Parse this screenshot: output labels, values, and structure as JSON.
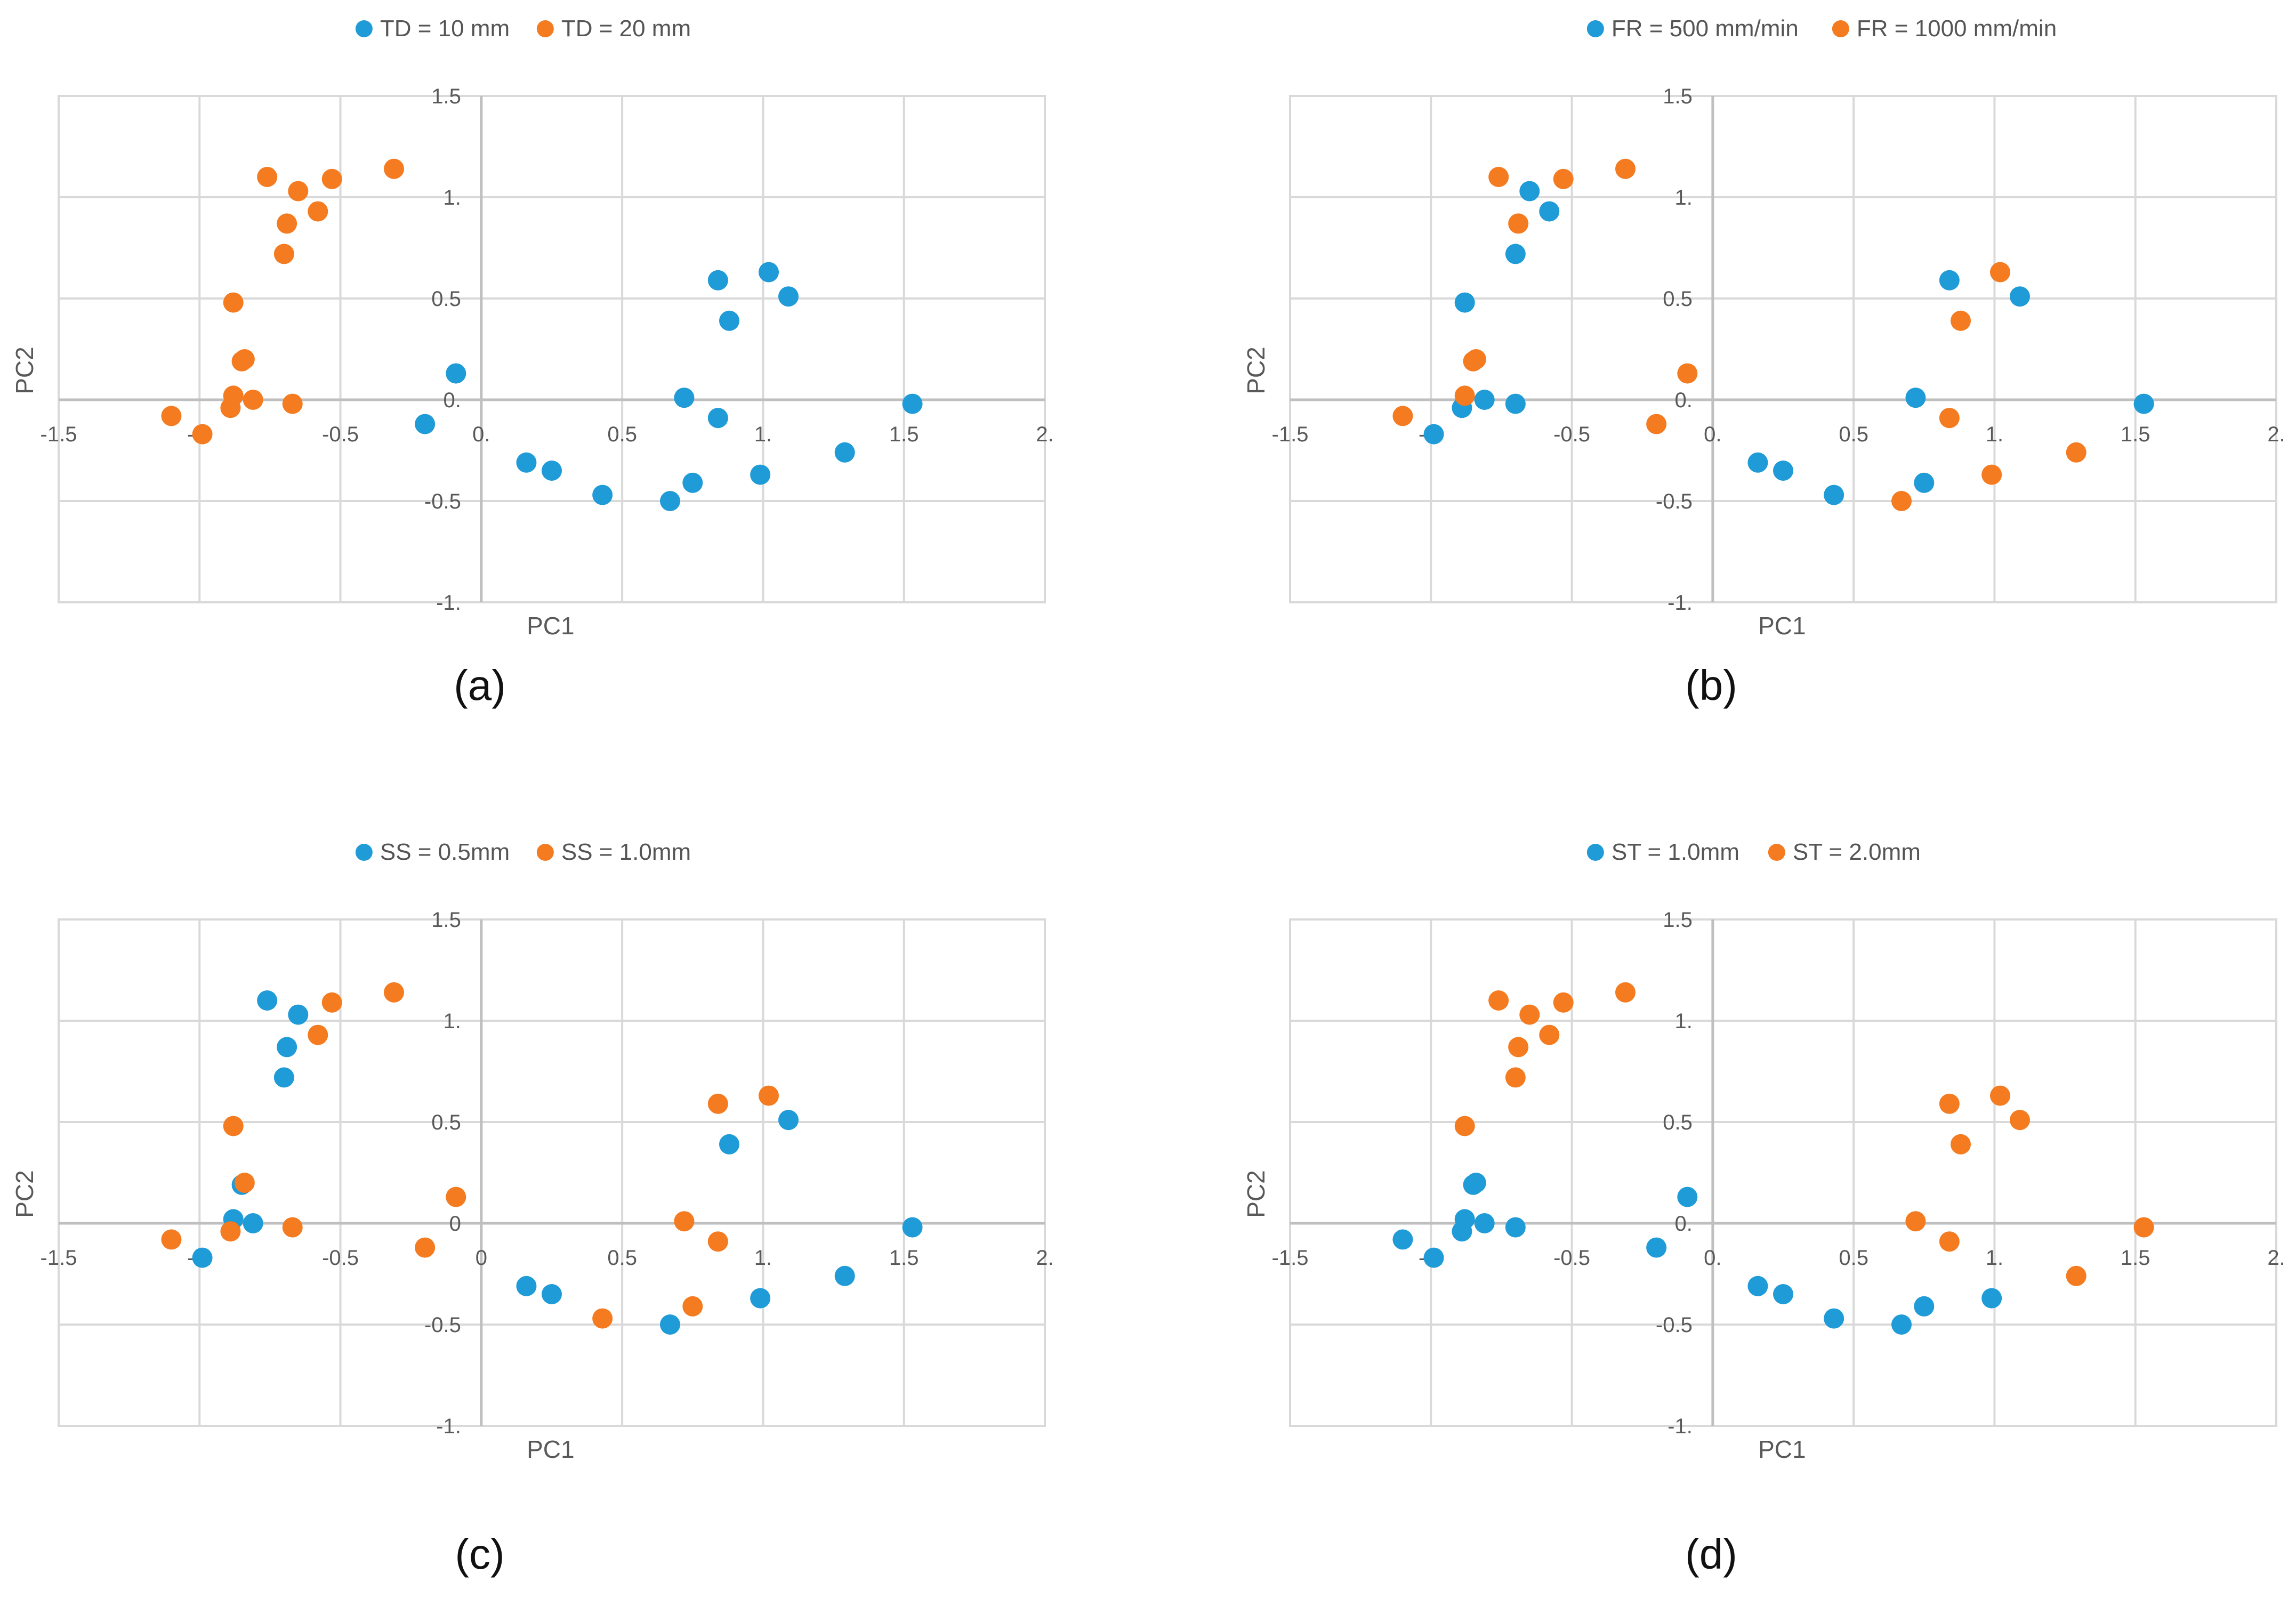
{
  "colors": {
    "series1": "#1f9bd7",
    "series2": "#f47b20",
    "grid": "#d9d9d9",
    "axis": "#bfbfbf",
    "text": "#595959"
  },
  "chart_data": [
    {
      "id": "a",
      "type": "scatter",
      "caption": "(a)",
      "xlabel": "PC1",
      "ylabel": "PC2",
      "xlim": [
        -1.5,
        2
      ],
      "ylim": [
        -1,
        1.5
      ],
      "x_ticks": [
        "-1.5",
        "-1.",
        "-0.5",
        "0.",
        "0.5",
        "1.",
        "1.5",
        "2."
      ],
      "y_ticks": [
        "-1.",
        "-0.5",
        "0.",
        "0.5",
        "1.",
        "1.5"
      ],
      "x_tick_values": [
        -1.5,
        -1,
        -0.5,
        0,
        0.5,
        1,
        1.5,
        2
      ],
      "y_tick_values": [
        -1,
        -0.5,
        0,
        0.5,
        1,
        1.5
      ],
      "legend_position": "top",
      "series": [
        {
          "name": "TD = 10 mm",
          "points": [
            [
              0.72,
              0.01
            ],
            [
              0.84,
              0.59
            ],
            [
              1.02,
              0.63
            ],
            [
              0.88,
              0.39
            ],
            [
              1.09,
              0.51
            ],
            [
              1.53,
              -0.02
            ],
            [
              0.84,
              -0.09
            ],
            [
              1.29,
              -0.26
            ],
            [
              0.99,
              -0.37
            ],
            [
              0.75,
              -0.41
            ],
            [
              0.67,
              -0.5
            ],
            [
              0.43,
              -0.47
            ],
            [
              0.25,
              -0.35
            ],
            [
              0.16,
              -0.31
            ],
            [
              -0.09,
              0.13
            ],
            [
              -0.2,
              -0.12
            ]
          ]
        },
        {
          "name": "TD = 20 mm",
          "points": [
            [
              -0.76,
              1.1
            ],
            [
              -0.65,
              1.03
            ],
            [
              -0.53,
              1.09
            ],
            [
              -0.31,
              1.14
            ],
            [
              -0.58,
              0.93
            ],
            [
              -0.69,
              0.87
            ],
            [
              -0.7,
              0.72
            ],
            [
              -0.88,
              0.48
            ],
            [
              -0.84,
              0.2
            ],
            [
              -0.85,
              0.19
            ],
            [
              -0.88,
              0.02
            ],
            [
              -0.81,
              0.0
            ],
            [
              -0.67,
              -0.02
            ],
            [
              -0.89,
              -0.04
            ],
            [
              -1.1,
              -0.08
            ],
            [
              -0.99,
              -0.17
            ]
          ]
        }
      ]
    },
    {
      "id": "b",
      "type": "scatter",
      "caption": "(b)",
      "xlabel": "PC1",
      "ylabel": "PC2",
      "xlim": [
        -1.5,
        2
      ],
      "ylim": [
        -1,
        1.5
      ],
      "x_ticks": [
        "-1.5",
        "-1.",
        "-0.5",
        "0.",
        "0.5",
        "1.",
        "1.5",
        "2."
      ],
      "y_ticks": [
        "-1.",
        "-0.5",
        "0.",
        "0.5",
        "1.",
        "1.5"
      ],
      "x_tick_values": [
        -1.5,
        -1,
        -0.5,
        0,
        0.5,
        1,
        1.5,
        2
      ],
      "y_tick_values": [
        -1,
        -0.5,
        0,
        0.5,
        1,
        1.5
      ],
      "legend_position": "top",
      "series": [
        {
          "name": "FR = 500 mm/min",
          "points": [
            [
              -0.65,
              1.03
            ],
            [
              -0.58,
              0.93
            ],
            [
              -0.7,
              0.72
            ],
            [
              -0.88,
              0.48
            ],
            [
              -0.81,
              0.0
            ],
            [
              -0.7,
              -0.02
            ],
            [
              -0.89,
              -0.04
            ],
            [
              -0.99,
              -0.17
            ],
            [
              0.84,
              0.59
            ],
            [
              1.09,
              0.51
            ],
            [
              0.72,
              0.01
            ],
            [
              1.53,
              -0.02
            ],
            [
              0.16,
              -0.31
            ],
            [
              0.25,
              -0.35
            ],
            [
              0.43,
              -0.47
            ],
            [
              0.75,
              -0.41
            ]
          ]
        },
        {
          "name": "FR = 1000 mm/min",
          "points": [
            [
              -0.76,
              1.1
            ],
            [
              -0.53,
              1.09
            ],
            [
              -0.31,
              1.14
            ],
            [
              -0.69,
              0.87
            ],
            [
              -0.85,
              0.19
            ],
            [
              -0.84,
              0.2
            ],
            [
              -0.88,
              0.02
            ],
            [
              -1.1,
              -0.08
            ],
            [
              -0.09,
              0.13
            ],
            [
              -0.2,
              -0.12
            ],
            [
              1.02,
              0.63
            ],
            [
              0.88,
              0.39
            ],
            [
              0.84,
              -0.09
            ],
            [
              0.99,
              -0.37
            ],
            [
              1.29,
              -0.26
            ],
            [
              0.67,
              -0.5
            ]
          ]
        }
      ]
    },
    {
      "id": "c",
      "type": "scatter",
      "caption": "(c)",
      "xlabel": "PC1",
      "ylabel": "PC2",
      "xlim": [
        -1.5,
        2
      ],
      "ylim": [
        -1,
        1.5
      ],
      "x_ticks": [
        "-1.5",
        "-1.",
        "-0.5",
        "0",
        "0.5",
        "1.",
        "1.5",
        "2."
      ],
      "y_ticks": [
        "-1.",
        "-0.5",
        "0",
        "0.5",
        "1.",
        "1.5"
      ],
      "x_tick_values": [
        -1.5,
        -1,
        -0.5,
        0,
        0.5,
        1,
        1.5,
        2
      ],
      "y_tick_values": [
        -1,
        -0.5,
        0,
        0.5,
        1,
        1.5
      ],
      "legend_position": "top",
      "series": [
        {
          "name": "SS = 0.5mm",
          "points": [
            [
              -0.76,
              1.1
            ],
            [
              -0.65,
              1.03
            ],
            [
              -0.69,
              0.87
            ],
            [
              -0.7,
              0.72
            ],
            [
              -0.85,
              0.19
            ],
            [
              -0.88,
              0.02
            ],
            [
              -0.81,
              0.0
            ],
            [
              -0.99,
              -0.17
            ],
            [
              0.88,
              0.39
            ],
            [
              1.09,
              0.51
            ],
            [
              1.53,
              -0.02
            ],
            [
              1.29,
              -0.26
            ],
            [
              0.99,
              -0.37
            ],
            [
              0.67,
              -0.5
            ],
            [
              0.25,
              -0.35
            ],
            [
              0.16,
              -0.31
            ]
          ]
        },
        {
          "name": "SS = 1.0mm",
          "points": [
            [
              -0.53,
              1.09
            ],
            [
              -0.31,
              1.14
            ],
            [
              -0.58,
              0.93
            ],
            [
              -0.88,
              0.48
            ],
            [
              -0.84,
              0.2
            ],
            [
              -0.67,
              -0.02
            ],
            [
              -0.89,
              -0.04
            ],
            [
              -1.1,
              -0.08
            ],
            [
              -0.09,
              0.13
            ],
            [
              -0.2,
              -0.12
            ],
            [
              0.84,
              0.59
            ],
            [
              1.02,
              0.63
            ],
            [
              0.72,
              0.01
            ],
            [
              0.84,
              -0.09
            ],
            [
              0.75,
              -0.41
            ],
            [
              0.43,
              -0.47
            ]
          ]
        }
      ]
    },
    {
      "id": "d",
      "type": "scatter",
      "caption": "(d)",
      "xlabel": "PC1",
      "ylabel": "PC2",
      "xlim": [
        -1.5,
        2
      ],
      "ylim": [
        -1,
        1.5
      ],
      "x_ticks": [
        "-1.5",
        "-1.",
        "-0.5",
        "0.",
        "0.5",
        "1.",
        "1.5",
        "2."
      ],
      "y_ticks": [
        "-1.",
        "-0.5",
        "0.",
        "0.5",
        "1.",
        "1.5"
      ],
      "x_tick_values": [
        -1.5,
        -1,
        -0.5,
        0,
        0.5,
        1,
        1.5,
        2
      ],
      "y_tick_values": [
        -1,
        -0.5,
        0,
        0.5,
        1,
        1.5
      ],
      "legend_position": "top",
      "series": [
        {
          "name": "ST = 1.0mm",
          "points": [
            [
              -0.85,
              0.19
            ],
            [
              -0.84,
              0.2
            ],
            [
              -0.88,
              0.02
            ],
            [
              -0.81,
              0.0
            ],
            [
              -0.7,
              -0.02
            ],
            [
              -0.89,
              -0.04
            ],
            [
              -1.1,
              -0.08
            ],
            [
              -0.99,
              -0.17
            ],
            [
              -0.09,
              0.13
            ],
            [
              -0.2,
              -0.12
            ],
            [
              0.16,
              -0.31
            ],
            [
              0.25,
              -0.35
            ],
            [
              0.43,
              -0.47
            ],
            [
              0.67,
              -0.5
            ],
            [
              0.75,
              -0.41
            ],
            [
              0.99,
              -0.37
            ]
          ]
        },
        {
          "name": "ST = 2.0mm",
          "points": [
            [
              -0.76,
              1.1
            ],
            [
              -0.65,
              1.03
            ],
            [
              -0.53,
              1.09
            ],
            [
              -0.31,
              1.14
            ],
            [
              -0.58,
              0.93
            ],
            [
              -0.69,
              0.87
            ],
            [
              -0.7,
              0.72
            ],
            [
              -0.88,
              0.48
            ],
            [
              0.84,
              0.59
            ],
            [
              1.02,
              0.63
            ],
            [
              0.88,
              0.39
            ],
            [
              1.09,
              0.51
            ],
            [
              0.72,
              0.01
            ],
            [
              0.84,
              -0.09
            ],
            [
              1.53,
              -0.02
            ],
            [
              1.29,
              -0.26
            ]
          ]
        }
      ]
    }
  ]
}
